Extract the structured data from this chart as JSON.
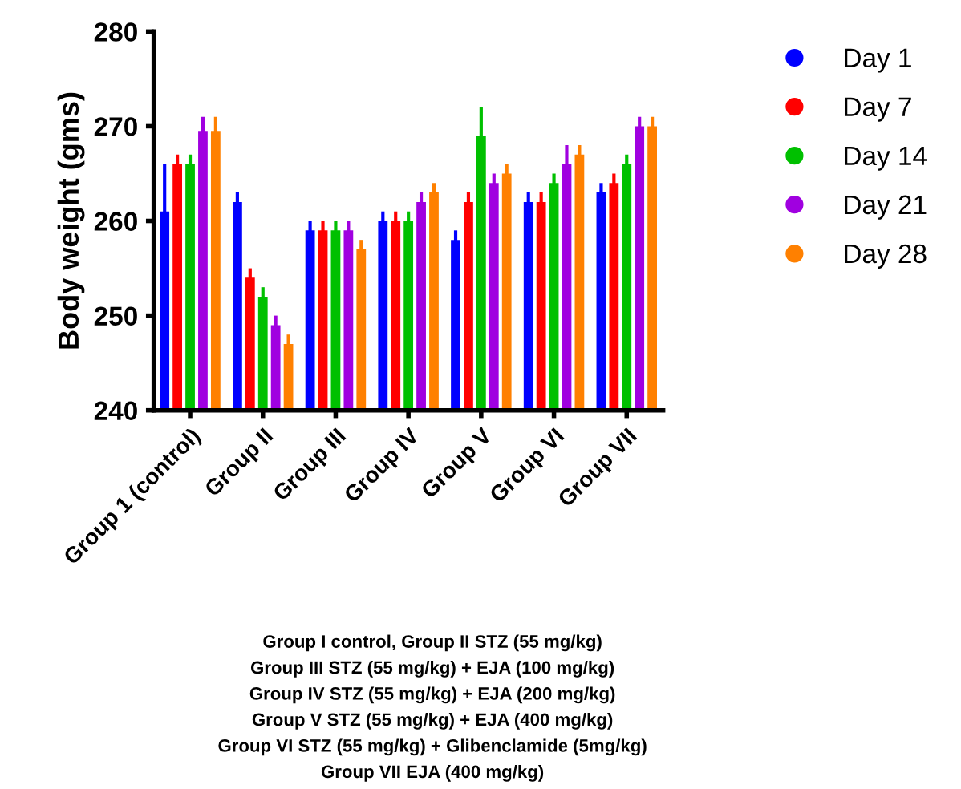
{
  "chart_data": {
    "type": "bar",
    "ylabel": "Body weight (gms)",
    "categories": [
      "Group 1 (control)",
      "Group II",
      "Group III",
      "Group IV",
      "Group V",
      "Group VI",
      "Group VII"
    ],
    "series": [
      {
        "name": "Day 1",
        "color": "#0000ff",
        "values": [
          261,
          262,
          259,
          260,
          258,
          262,
          263
        ],
        "errors": [
          5,
          1,
          1,
          1,
          1,
          1,
          1
        ]
      },
      {
        "name": "Day 7",
        "color": "#ff0000",
        "values": [
          266,
          254,
          259,
          260,
          262,
          262,
          264
        ],
        "errors": [
          1,
          1,
          1,
          1,
          1,
          1,
          1
        ]
      },
      {
        "name": "Day 14",
        "color": "#00c000",
        "values": [
          266,
          252,
          259,
          260,
          269,
          264,
          266
        ],
        "errors": [
          1,
          1,
          1,
          1,
          3,
          1,
          1
        ]
      },
      {
        "name": "Day 21",
        "color": "#a000e0",
        "values": [
          269.5,
          249,
          259,
          262,
          264,
          266,
          270
        ],
        "errors": [
          1.5,
          1,
          1,
          1,
          1,
          2,
          1
        ]
      },
      {
        "name": "Day 28",
        "color": "#ff8000",
        "values": [
          269.5,
          247,
          257,
          263,
          265,
          267,
          270
        ],
        "errors": [
          1.5,
          1,
          1,
          1,
          1,
          1,
          1
        ]
      }
    ],
    "ylim": [
      240,
      280
    ],
    "yticks": [
      240,
      250,
      260,
      270,
      280
    ],
    "grid": false,
    "legend": "top right",
    "annotations": [
      "Group I control, Group II STZ (55 mg/kg)",
      "Group III STZ (55 mg/kg) + EJA (100 mg/kg)",
      "Group IV STZ (55 mg/kg) + EJA (200 mg/kg)",
      "Group V STZ (55 mg/kg) + EJA (400 mg/kg)",
      "Group VI STZ (55 mg/kg) + Glibenclamide (5mg/kg)",
      "Group VII EJA (400 mg/kg)"
    ]
  }
}
